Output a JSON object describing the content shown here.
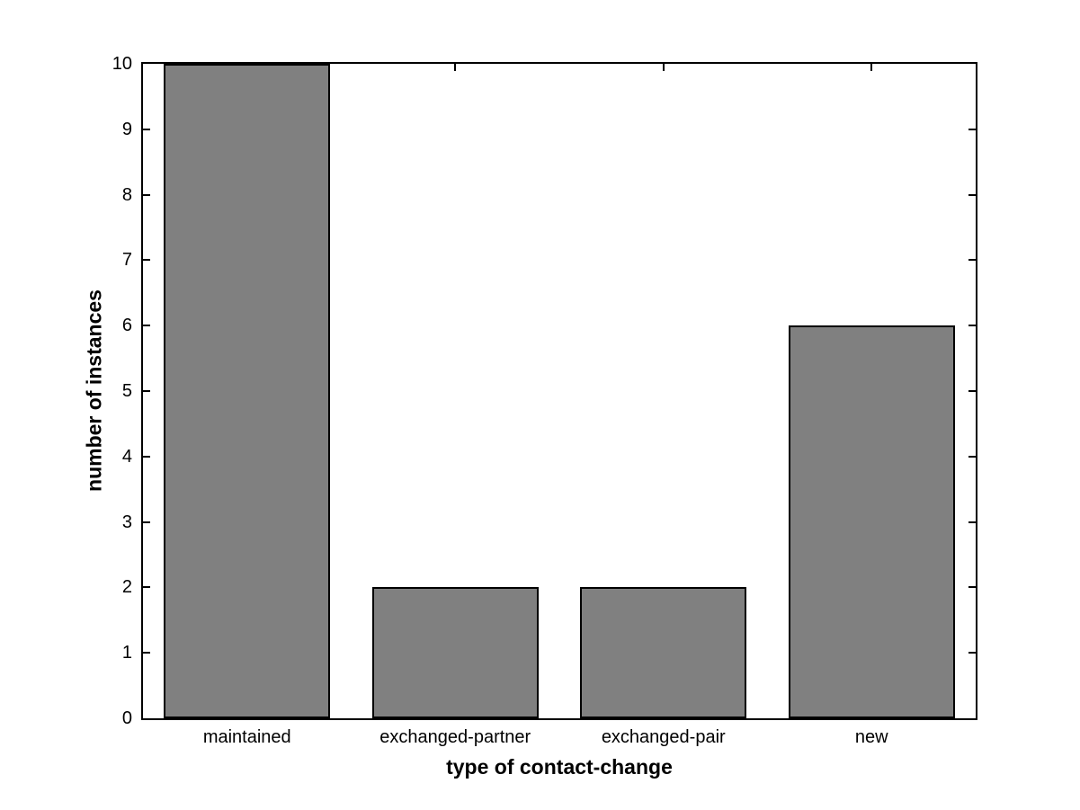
{
  "chart_data": {
    "type": "bar",
    "title": "",
    "xlabel": "type of contact-change",
    "ylabel": "number of instances",
    "categories": [
      "maintained",
      "exchanged-partner",
      "exchanged-pair",
      "new"
    ],
    "values": [
      10,
      2,
      2,
      6
    ],
    "ylim": [
      0,
      10
    ],
    "yticks": [
      0,
      1,
      2,
      3,
      4,
      5,
      6,
      7,
      8,
      9,
      10
    ],
    "bar_width_fraction": 0.8,
    "grid": false,
    "legend_position": "none",
    "colors": {
      "bar_fill": "#808080",
      "bar_edge": "#000000",
      "axis": "#000000",
      "background": "#ffffff"
    }
  }
}
